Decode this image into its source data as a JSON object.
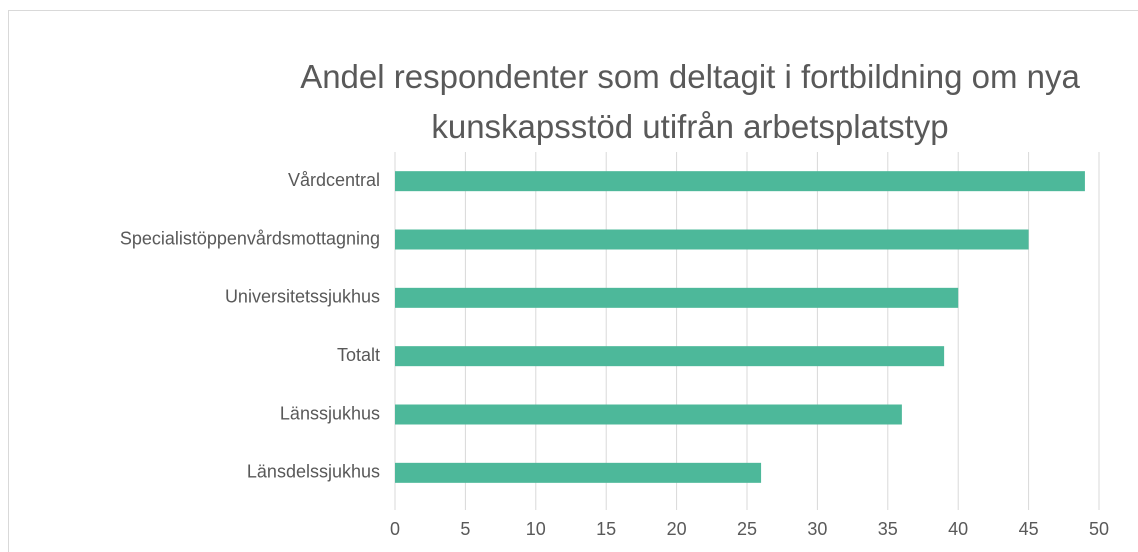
{
  "chart_data": {
    "type": "bar",
    "orientation": "horizontal",
    "title": "Andel respondenter som deltagit i fortbildning om nya kunskapsstöd utifrån arbetsplatstyp",
    "categories": [
      "Vårdcentral",
      "Specialistöppenvårdsmottagning",
      "Universitetssjukhus",
      "Totalt",
      "Länssjukhus",
      "Länsdelssjukhus"
    ],
    "values": [
      49,
      45,
      40,
      39,
      36,
      26
    ],
    "color": "#4db89a",
    "xlim": [
      0,
      50
    ],
    "xticks": [
      0,
      5,
      10,
      15,
      20,
      25,
      30,
      35,
      40,
      45,
      50
    ],
    "grid": true
  }
}
